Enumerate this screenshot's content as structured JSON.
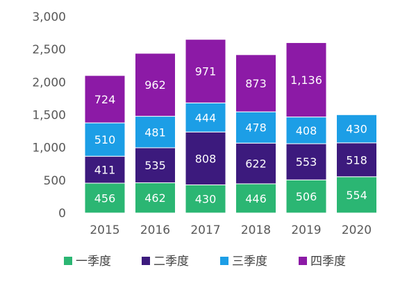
{
  "chart_data": {
    "type": "bar",
    "stacked": true,
    "categories": [
      "2015",
      "2016",
      "2017",
      "2018",
      "2019",
      "2020"
    ],
    "series": [
      {
        "name": "一季度",
        "color": "#2bb673",
        "values": [
          456,
          462,
          430,
          446,
          506,
          554
        ]
      },
      {
        "name": "二季度",
        "color": "#3c1a7d",
        "values": [
          411,
          535,
          808,
          622,
          553,
          518
        ]
      },
      {
        "name": "三季度",
        "color": "#1c9ee6",
        "values": [
          510,
          481,
          444,
          478,
          408,
          430
        ]
      },
      {
        "name": "四季度",
        "color": "#8c1aa6",
        "values": [
          724,
          962,
          971,
          873,
          1136,
          null
        ]
      }
    ],
    "data_labels": [
      [
        "456",
        "462",
        "430",
        "446",
        "506",
        "554"
      ],
      [
        "411",
        "535",
        "808",
        "622",
        "553",
        "518"
      ],
      [
        "510",
        "481",
        "444",
        "478",
        "408",
        "430"
      ],
      [
        "724",
        "962",
        "971",
        "873",
        "1,136",
        ""
      ]
    ],
    "yticks": [
      0,
      500,
      1000,
      1500,
      2000,
      2500,
      3000
    ],
    "ytick_labels": [
      "0",
      "500",
      "1,000",
      "1,500",
      "2,000",
      "2,500",
      "3,000"
    ],
    "ylim": [
      0,
      3000
    ],
    "grid": false,
    "legend_position": "bottom",
    "title": "",
    "xlabel": "",
    "ylabel": ""
  }
}
